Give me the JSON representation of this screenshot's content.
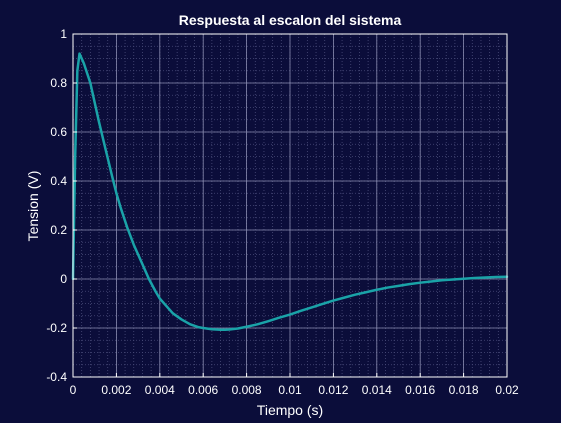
{
  "chart_data": {
    "type": "line",
    "title": "Respuesta al escalon del sistema",
    "xlabel": "Tiempo (s)",
    "ylabel": "Tension (V)",
    "xlim": [
      0,
      0.02
    ],
    "ylim": [
      -0.4,
      1
    ],
    "x_ticks": [
      "0",
      "0.002",
      "0.004",
      "0.006",
      "0.008",
      "0.01",
      "0.012",
      "0.014",
      "0.016",
      "0.018",
      "0.02"
    ],
    "y_ticks": [
      "-0.4",
      "-0.2",
      "0",
      "0.2",
      "0.4",
      "0.6",
      "0.8",
      "1"
    ],
    "grid": true,
    "minor_grid": true,
    "colors": {
      "background": "#0b0d3a",
      "line": "#1aa3a8",
      "grid_major": "#8a8cb0",
      "grid_minor": "#4a4c7a",
      "text": "#ffffff"
    },
    "series": [
      {
        "x": [
          0,
          0.0001,
          0.0002,
          0.0003,
          0.0005,
          0.0008,
          0.001,
          0.0012,
          0.0015,
          0.0018,
          0.002,
          0.0022,
          0.0025,
          0.0028,
          0.003,
          0.0032,
          0.0035,
          0.0038,
          0.004,
          0.0043,
          0.0046,
          0.005,
          0.0054,
          0.0058,
          0.006,
          0.0064,
          0.0068,
          0.007,
          0.0072,
          0.0076,
          0.008,
          0.0085,
          0.009,
          0.0095,
          0.01,
          0.0105,
          0.011,
          0.0115,
          0.012,
          0.0125,
          0.013,
          0.0135,
          0.014,
          0.0145,
          0.015,
          0.0155,
          0.016,
          0.0165,
          0.017,
          0.0175,
          0.018,
          0.0185,
          0.019,
          0.0195,
          0.02
        ],
        "y": [
          0,
          0.5,
          0.85,
          0.92,
          0.88,
          0.8,
          0.72,
          0.64,
          0.53,
          0.42,
          0.35,
          0.29,
          0.21,
          0.14,
          0.1,
          0.06,
          0.0,
          -0.05,
          -0.08,
          -0.11,
          -0.14,
          -0.165,
          -0.185,
          -0.197,
          -0.2,
          -0.205,
          -0.207,
          -0.207,
          -0.206,
          -0.202,
          -0.195,
          -0.185,
          -0.172,
          -0.158,
          -0.145,
          -0.13,
          -0.116,
          -0.102,
          -0.088,
          -0.076,
          -0.064,
          -0.054,
          -0.044,
          -0.035,
          -0.028,
          -0.021,
          -0.015,
          -0.01,
          -0.005,
          -0.002,
          0.001,
          0.004,
          0.006,
          0.008,
          0.009
        ]
      }
    ]
  }
}
